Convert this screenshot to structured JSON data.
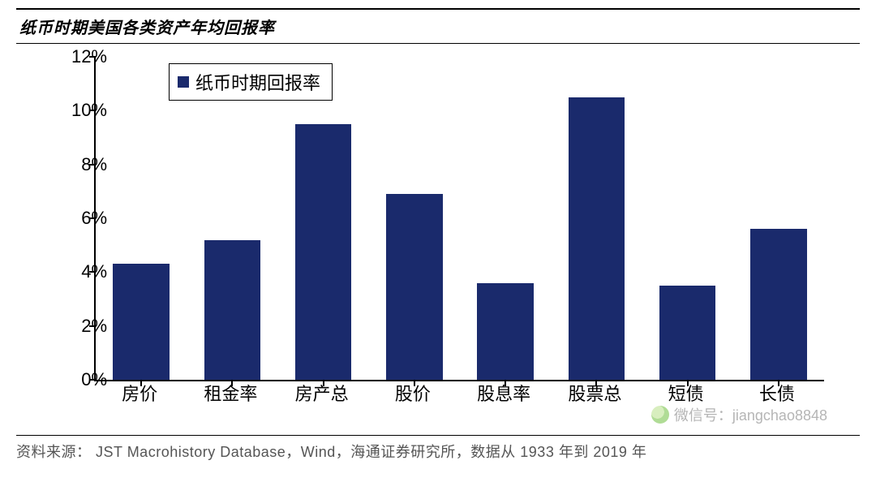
{
  "title": "纸币时期美国各类资产年均回报率",
  "source_label": "资料来源：",
  "source_text": "JST Macrohistory Database，Wind，海通证券研究所，数据从 1933 年到 2019 年",
  "watermark": "微信号：jiangchao8848",
  "chart": {
    "type": "bar",
    "legend_label": "纸币时期回报率",
    "bar_color": "#1a2a6c",
    "axis_color": "#000000",
    "background_color": "#ffffff",
    "title_fontsize": 20,
    "tick_fontsize": 22,
    "legend_fontsize": 22,
    "ylim": [
      0,
      12
    ],
    "ytick_step": 2,
    "y_suffix": "%",
    "bar_width_ratio": 0.62,
    "categories": [
      "房价",
      "租金率",
      "房产总",
      "股价",
      "股息率",
      "股票总",
      "短债",
      "长债"
    ],
    "values": [
      4.3,
      5.2,
      9.5,
      6.9,
      3.6,
      10.5,
      3.5,
      5.6
    ]
  }
}
